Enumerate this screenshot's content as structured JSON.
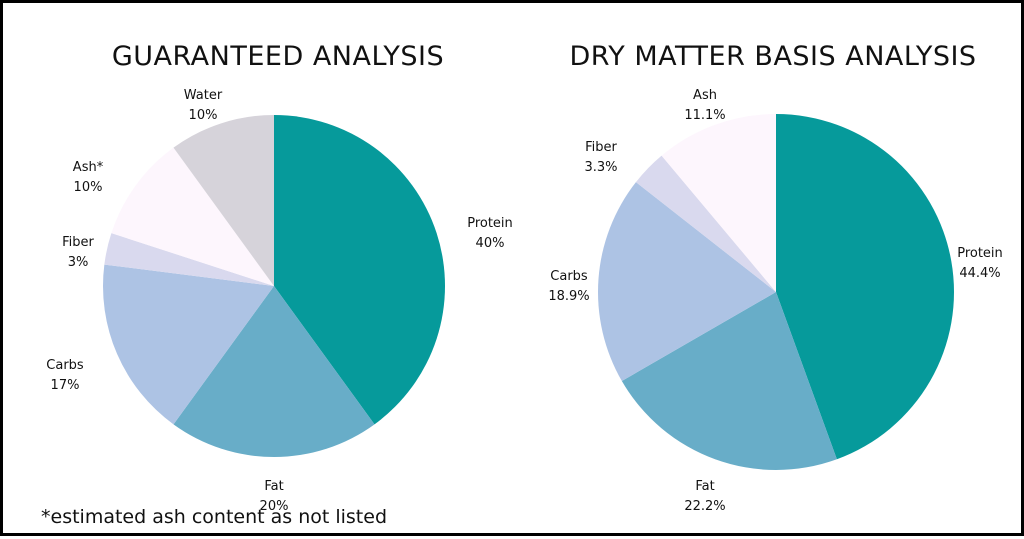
{
  "chart_data": [
    {
      "type": "pie",
      "title": "GUARANTEED ANALYSIS",
      "slices": [
        {
          "label": "Protein",
          "value_text": "40%",
          "value": 40,
          "color": "#069a9b"
        },
        {
          "label": "Fat",
          "value_text": "20%",
          "value": 20,
          "color": "#68adc8"
        },
        {
          "label": "Carbs",
          "value_text": "17%",
          "value": 17,
          "color": "#adc3e4"
        },
        {
          "label": "Fiber",
          "value_text": "3%",
          "value": 3,
          "color": "#d9d9ee"
        },
        {
          "label": "Ash*",
          "value_text": "10%",
          "value": 10,
          "color": "#fdf6fd"
        },
        {
          "label": "Water",
          "value_text": "10%",
          "value": 10,
          "color": "#d6d3da"
        }
      ]
    },
    {
      "type": "pie",
      "title": "DRY MATTER BASIS ANALYSIS",
      "slices": [
        {
          "label": "Protein",
          "value_text": "44.4%",
          "value": 44.4,
          "color": "#069a9b"
        },
        {
          "label": "Fat",
          "value_text": "22.2%",
          "value": 22.2,
          "color": "#68adc8"
        },
        {
          "label": "Carbs",
          "value_text": "18.9%",
          "value": 18.9,
          "color": "#adc3e4"
        },
        {
          "label": "Fiber",
          "value_text": "3.3%",
          "value": 3.3,
          "color": "#d9d9ee"
        },
        {
          "label": "Ash",
          "value_text": "11.1%",
          "value": 11.1,
          "color": "#fdf6fd"
        }
      ]
    }
  ],
  "footnote": "*estimated ash content as not listed"
}
